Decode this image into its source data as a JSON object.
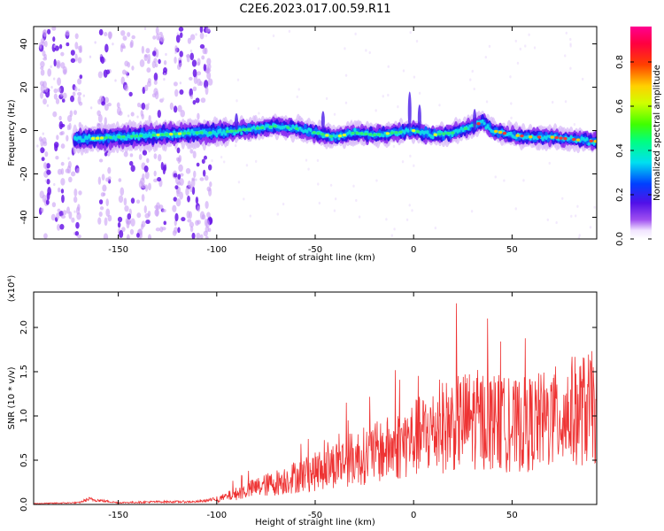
{
  "title": "C2E6.2023.017.00.59.R11",
  "colors": {
    "snr_line": "#ee3333",
    "axis": "#000000",
    "background": "#ffffff"
  },
  "colorbar": {
    "label": "Normalized spectral amplitude",
    "ticks": [
      "0.0",
      "0.2",
      "0.4",
      "0.6",
      "0.8"
    ],
    "tick_values": [
      0.0,
      0.2,
      0.4,
      0.6,
      0.8
    ],
    "range": [
      0,
      0.96
    ],
    "colormap": "rainbow (white-purple-blue-cyan-green-yellow-red-magenta)"
  },
  "chart_data": [
    {
      "type": "heatmap",
      "title": "C2E6.2023.017.00.59.R11",
      "xlabel": "Height of straight line (km)",
      "ylabel": "Frequency (Hz)",
      "xlim": [
        -193,
        93
      ],
      "ylim": [
        -50,
        48
      ],
      "x_ticks": [
        -150,
        -100,
        -50,
        0,
        50
      ],
      "x_tick_labels": [
        "-150",
        "-100",
        "-50",
        "0",
        "50"
      ],
      "y_ticks": [
        -40,
        -20,
        0,
        20,
        40
      ],
      "y_tick_labels": [
        "-40",
        "-20",
        "0",
        "20",
        "40"
      ],
      "ridge": {
        "description": "peak-frequency track",
        "x": [
          -170,
          -150,
          -130,
          -110,
          -100,
          -90,
          -80,
          -70,
          -60,
          -50,
          -40,
          -30,
          -20,
          -10,
          0,
          10,
          20,
          30,
          35,
          40,
          50,
          60,
          70,
          80,
          93
        ],
        "y": [
          -4,
          -3,
          -2,
          -1,
          -1,
          0,
          1,
          2,
          1,
          -1,
          -3,
          -1,
          -2,
          -1,
          0,
          -2,
          -1,
          2,
          4,
          0,
          -2,
          -3,
          -3,
          -4,
          -5
        ]
      },
      "noise_region": [
        -193,
        -108
      ]
    },
    {
      "type": "line",
      "xlabel": "Height of straight line (km)",
      "ylabel": "SNR (10 * v/v)",
      "y_multiplier": "(x10⁴)",
      "xlim": [
        -193,
        93
      ],
      "ylim": [
        0,
        2.4
      ],
      "x_ticks": [
        -150,
        -100,
        -50,
        0,
        50
      ],
      "x_tick_labels": [
        "-150",
        "-100",
        "-50",
        "0",
        "50"
      ],
      "y_ticks": [
        0.0,
        0.5,
        1.0,
        1.5,
        2.0
      ],
      "y_tick_labels": [
        "0.0",
        "0.5",
        "1.0",
        "1.5",
        "2.0"
      ],
      "series": [
        {
          "x": [
            -193,
            -170,
            -165,
            -150,
            -130,
            -110,
            -100,
            -90,
            -80,
            -70,
            -60,
            -50,
            -40,
            -30,
            -20,
            -10,
            0,
            10,
            20,
            30,
            40,
            50,
            60,
            70,
            80,
            93
          ],
          "envelope": [
            0.01,
            0.02,
            0.06,
            0.02,
            0.03,
            0.03,
            0.06,
            0.14,
            0.22,
            0.28,
            0.36,
            0.42,
            0.52,
            0.6,
            0.66,
            0.74,
            0.85,
            0.95,
            1.05,
            1.1,
            1.08,
            1.0,
            1.05,
            1.1,
            1.2,
            1.25
          ]
        }
      ]
    }
  ]
}
